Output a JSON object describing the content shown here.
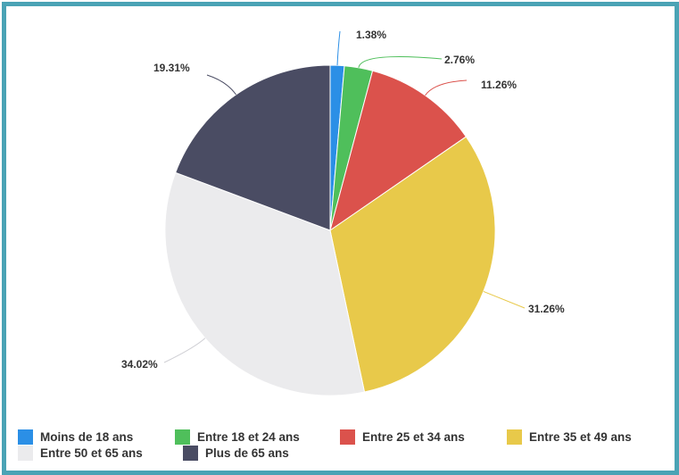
{
  "chart_data": {
    "type": "pie",
    "slices": [
      {
        "label": "Moins de 18 ans",
        "value": 1.38,
        "value_label": "1.38%",
        "color": "#2b8fe6"
      },
      {
        "label": "Entre 18 et 24 ans",
        "value": 2.76,
        "value_label": "2.76%",
        "color": "#4fbf5b"
      },
      {
        "label": "Entre 25 et 34 ans",
        "value": 11.26,
        "value_label": "11.26%",
        "color": "#db524c"
      },
      {
        "label": "Entre 35 et 49 ans",
        "value": 31.26,
        "value_label": "31.26%",
        "color": "#e8c94a"
      },
      {
        "label": "Entre 50 et 65 ans",
        "value": 34.02,
        "value_label": "34.02%",
        "color": "#ebebed"
      },
      {
        "label": "Plus de 65 ans",
        "value": 19.31,
        "value_label": "19.31%",
        "color": "#4a4c63"
      }
    ],
    "legend_position": "bottom"
  },
  "frame_color": "#4aa3b5"
}
